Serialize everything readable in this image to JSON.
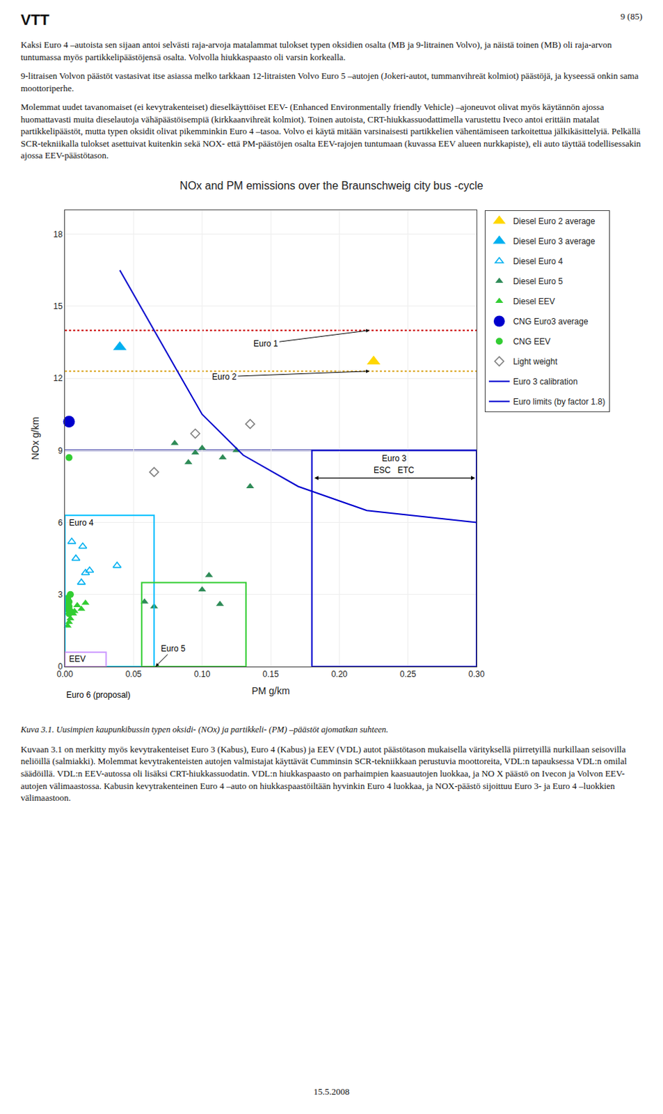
{
  "page": {
    "logo": "VTT",
    "page_number": "9 (85)",
    "paragraphs": [
      "Kaksi Euro 4 –autoista sen sijaan antoi selvästi raja-arvoja matalammat tulokset typen oksidien osalta (MB ja 9-litrainen Volvo), ja näistä toinen (MB) oli raja-arvon tuntumassa myös partikkelipäästöjensä osalta. Volvolla hiukkaspaasto oli varsin korkealla.",
      "9-litraisen Volvon päästöt vastasivat itse asiassa melko tarkkaan 12-litraisten Volvo Euro 5 –autojen (Jokeri-autot, tummanvihreät kolmiot) päästöjä, ja kyseessä onkin sama moottoriperhe.",
      "Molemmat uudet tavanomaiset (ei kevytrakenteiset) dieselkäyttöiset EEV- (Enhanced Environmentally friendly Vehicle) –ajoneuvot olivat myös käytännön ajossa huomattavasti muita dieselautoja vähäpäästöisempiä (kirkkaanvihreät kolmiot). Toinen autoista, CRT-hiukkassuodattimella varustettu Iveco antoi erittäin matalat partikkelipäästöt, mutta typen oksidit olivat pikemminkin Euro 4 –tasoa. Volvo ei käytä mitään varsinaisesti partikkelien vähentämiseen tarkoitettua jälkikäsittelyiä. Pelkällä SCR-tekniikalla tulokset asettuivat kuitenkin sekä NOX- että PM-päästöjen osalta EEV-rajojen tuntumaan (kuvassa EEV alueen nurkkapiste), eli auto täyttää todellisessakin ajossa EEV-päästötason."
    ],
    "caption": "Kuva 3.1. Uusimpien kaupunkibussin typen oksidi- (NOx) ja partikkeli- (PM) –päästöt ajomatkan suhteen.",
    "closing_paragraph": "Kuvaan 3.1 on merkitty myös kevytrakenteiset Euro 3 (Kabus), Euro 4 (Kabus) ja EEV (VDL) autot päästötason mukaisella värityksellä piirretyillä nurkillaan seisovilla neliöillä (salmiakki). Molemmat kevytrakenteisten autojen valmistajat käyttävät Cumminsin SCR-tekniikkaan perustuvia moottoreita, VDL:n tapauksessa VDL:n omilal säädöillä. VDL:n EEV-autossa oli lisäksi CRT-hiukkassuodatin. VDL:n hiukkaspaasto on parhaimpien kaasuautojen luokkaa, ja NO X päästö on Ivecon ja Volvon EEV-autojen välimaastossa. Kabusin kevytrakenteinen Euro 4 –auto on hiukkaspaastöiltään hyvinkin Euro 4 luokkaa, ja NOX-päästö sijoittuu Euro 3- ja Euro 4 –luokkien välimaastoon.",
    "date": "15.5.2008"
  },
  "chart_data": {
    "type": "scatter",
    "title": "NOx and PM emissions over the Braunschweig city bus -cycle",
    "xlabel": "PM g/km",
    "ylabel": "NOx g/km",
    "xlim": [
      0.0,
      0.3
    ],
    "xticks": [
      {
        "value": 0.0,
        "label": "0.00"
      },
      0.05,
      {
        "value": 0.1,
        "label": "0.10"
      },
      0.15,
      {
        "value": 0.2,
        "label": "0.20"
      },
      0.25,
      {
        "value": 0.3,
        "label": "0.30"
      }
    ],
    "ylim": [
      0,
      19
    ],
    "yticks": [
      0,
      3,
      6,
      9,
      12,
      15,
      18
    ],
    "grid": true,
    "legend": "right",
    "series": [
      {
        "name": "Diesel Euro 2 average",
        "type": "scatter",
        "marker": "triangle-up",
        "color": "#FFD700",
        "x": [
          0.225
        ],
        "values": [
          12.7
        ]
      },
      {
        "name": "Diesel Euro 3 average",
        "type": "scatter",
        "marker": "triangle-up",
        "color": "#00B0F0",
        "x": [
          0.04
        ],
        "values": [
          13.3
        ]
      },
      {
        "name": "Diesel Euro 4",
        "type": "scatter",
        "marker": "triangle-up-open",
        "color": "#00B0F0",
        "x": [
          0.005,
          0.013,
          0.008,
          0.018,
          0.015,
          0.012,
          0.038
        ],
        "values": [
          5.2,
          5.0,
          4.5,
          4.0,
          3.9,
          3.5,
          4.2
        ]
      },
      {
        "name": "Diesel Euro 5",
        "type": "scatter",
        "marker": "triangle-up",
        "color": "#2E8B57",
        "x": [
          0.058,
          0.065,
          0.1,
          0.113,
          0.105,
          0.09,
          0.115,
          0.135,
          0.125,
          0.1,
          0.08,
          0.095
        ],
        "values": [
          2.7,
          2.5,
          3.2,
          2.6,
          3.8,
          8.5,
          8.7,
          7.5,
          9.0,
          9.1,
          9.3,
          8.9
        ]
      },
      {
        "name": "Diesel EEV",
        "type": "scatter",
        "marker": "triangle-up",
        "color": "#32CD32",
        "x": [
          0.015,
          0.009,
          0.012,
          0.007,
          0.006,
          0.004,
          0.003,
          0.002
        ],
        "values": [
          2.65,
          2.55,
          2.4,
          2.3,
          2.2,
          2.0,
          1.85,
          1.7
        ]
      },
      {
        "name": "CNG Euro3 average",
        "type": "scatter",
        "marker": "circle",
        "color": "#0000CD",
        "x": [
          0.003
        ],
        "values": [
          10.2
        ]
      },
      {
        "name": "CNG EEV",
        "type": "scatter",
        "marker": "circle",
        "color": "#32CD32",
        "x": [
          0.003,
          0.004,
          0.002,
          0.003,
          0.002,
          0.003,
          0.002,
          0.004,
          0.003
        ],
        "values": [
          8.7,
          3.0,
          2.85,
          2.7,
          2.6,
          2.5,
          2.4,
          2.3,
          2.2
        ]
      },
      {
        "name": "Light weight",
        "type": "scatter",
        "marker": "diamond-open",
        "color": "#808080",
        "x": [
          0.065,
          0.135,
          0.095
        ],
        "values": [
          8.1,
          10.1,
          9.7
        ]
      },
      {
        "name": "Euro 3 calibration",
        "type": "line",
        "color": "#0000CD",
        "x": [
          0.04,
          0.06,
          0.08,
          0.1,
          0.13,
          0.17,
          0.22,
          0.3
        ],
        "values": [
          16.5,
          14.5,
          12.5,
          10.5,
          8.8,
          7.5,
          6.5,
          6.0
        ]
      }
    ],
    "limit_boxes": {
      "name": "Euro limits (by factor 1.8)",
      "boxes": [
        {
          "label": "Euro 3",
          "x": 0.18,
          "y": 0,
          "width": 0.12,
          "height": 9.0,
          "color": "#0000CD"
        },
        {
          "label": "Euro 4",
          "x": 0.0,
          "y": 0,
          "width": 0.065,
          "height": 6.3,
          "color": "#00BFFF"
        },
        {
          "label": "Euro 5",
          "x": 0.056,
          "y": 0,
          "width": 0.076,
          "height": 3.5,
          "color": "#32CD32"
        },
        {
          "label": "EEV",
          "x": 0.0,
          "y": 0,
          "width": 0.03,
          "height": 0.6,
          "color": "#CC99FF"
        }
      ]
    },
    "reference_lines": [
      {
        "y": 14.0,
        "color": "#CC0000",
        "line_style": "dotted",
        "label": "Euro 1"
      },
      {
        "y": 12.3,
        "color": "#DAA520",
        "line_style": "dotted",
        "label": "Euro 2"
      },
      {
        "y": 9.0,
        "color": "#00008B",
        "line_style": "solid"
      }
    ],
    "range_label": "ESC   ETC",
    "proposal_label": "Euro 6 (proposal)"
  }
}
